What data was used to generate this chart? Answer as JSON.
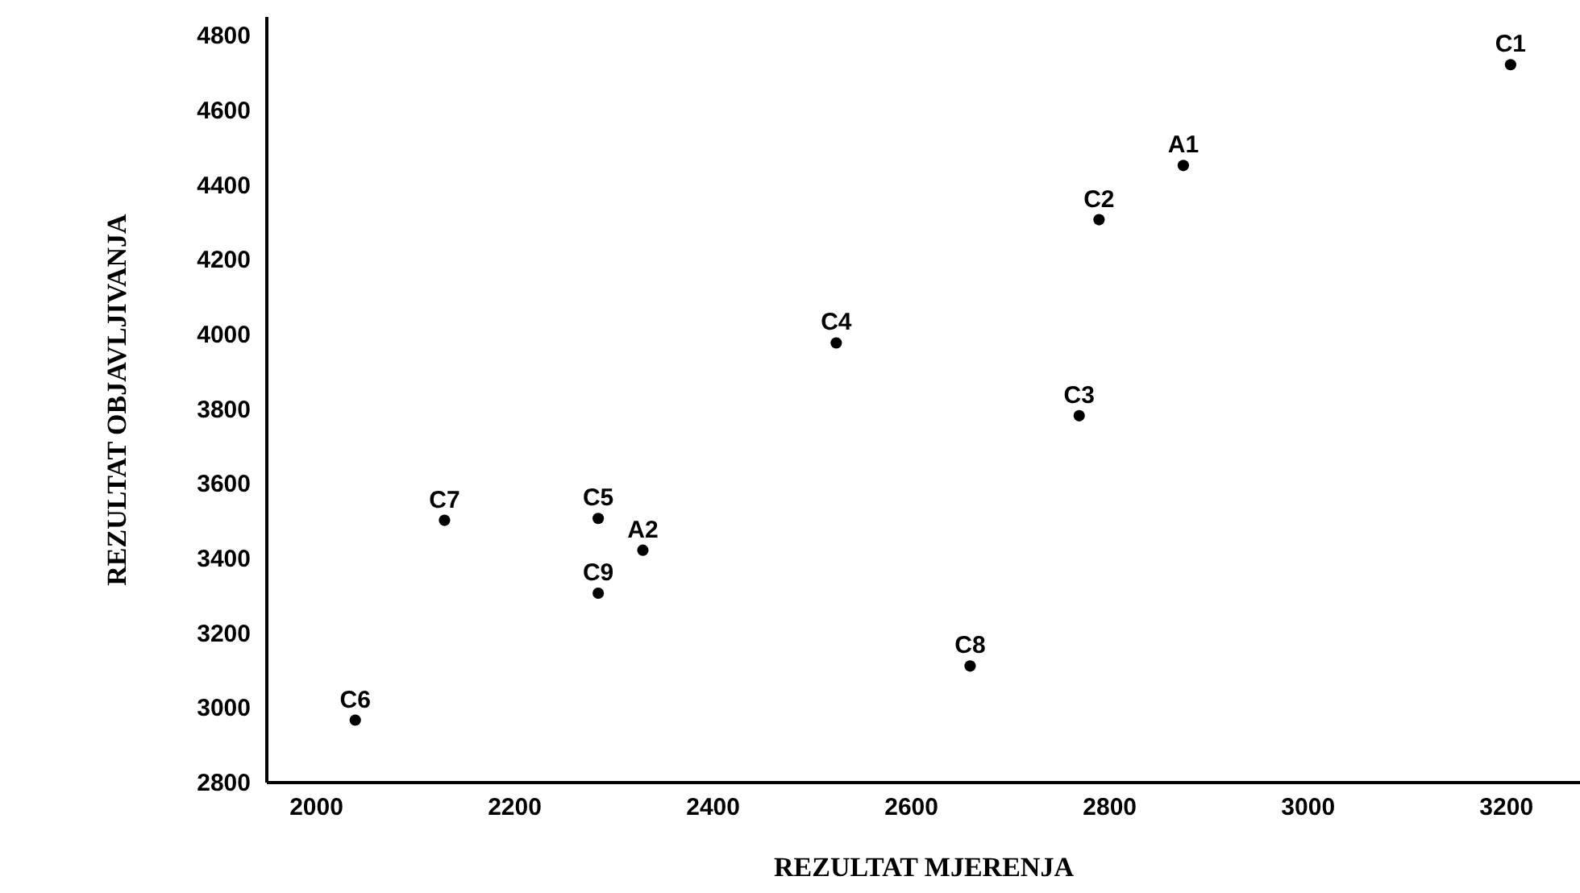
{
  "chart_data": {
    "type": "scatter",
    "xlabel": "REZULTAT MJERENJA",
    "ylabel": "REZULTAT OBJAVLJIVANJA",
    "x": [
      3205,
      2875,
      2790,
      2525,
      2770,
      2130,
      2285,
      2330,
      2285,
      2660,
      2040
    ],
    "values": [
      4720,
      4450,
      4305,
      3975,
      3780,
      3500,
      3505,
      3420,
      3305,
      3110,
      2965
    ],
    "color": "#000000",
    "marker": "circle",
    "grid": false,
    "xlim": [
      1950,
      3275
    ],
    "ylim": [
      2800,
      4850
    ],
    "xticks": [
      2000,
      2200,
      2400,
      2600,
      2800,
      3000,
      3200
    ],
    "yticks": [
      2800,
      3000,
      3200,
      3400,
      3600,
      3800,
      4000,
      4200,
      4400,
      4600,
      4800
    ],
    "annotations": [
      {
        "text": "C1",
        "x": 3205,
        "y": 4720
      },
      {
        "text": "A1",
        "x": 2875,
        "y": 4450
      },
      {
        "text": "C2",
        "x": 2790,
        "y": 4305
      },
      {
        "text": "C4",
        "x": 2525,
        "y": 3975
      },
      {
        "text": "C3",
        "x": 2770,
        "y": 3780
      },
      {
        "text": "C7",
        "x": 2130,
        "y": 3500
      },
      {
        "text": "C5",
        "x": 2285,
        "y": 3505
      },
      {
        "text": "A2",
        "x": 2330,
        "y": 3420
      },
      {
        "text": "C9",
        "x": 2285,
        "y": 3305
      },
      {
        "text": "C8",
        "x": 2660,
        "y": 3110
      },
      {
        "text": "C6",
        "x": 2040,
        "y": 2965
      }
    ]
  }
}
